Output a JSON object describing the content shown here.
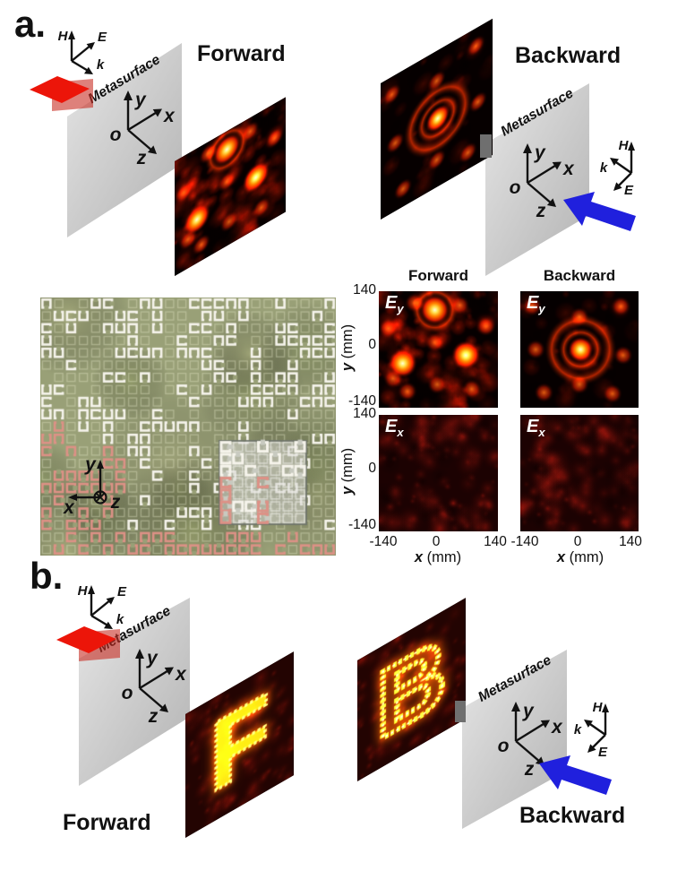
{
  "labels": {
    "panel_a": "a.",
    "panel_b": "b.",
    "forward": "Forward",
    "backward": "Backward",
    "metasurface": "Metasurface",
    "axis_x": "x",
    "axis_y": "y",
    "axis_z": "z",
    "origin": "o",
    "h": "H",
    "e": "E",
    "k": "k"
  },
  "letters": {
    "forward": "F",
    "backward": "B"
  },
  "field_maps": {
    "col_headers": [
      "Forward",
      "Backward"
    ],
    "e_symbol": "E",
    "sub_y": "y",
    "sub_x": "x",
    "y_ticks": [
      "140",
      "0",
      "-140"
    ],
    "x_ticks": [
      "-140",
      "0",
      "140"
    ],
    "y_axis_symbol": "y",
    "x_axis_symbol": "x",
    "axis_unit": "(mm)",
    "x_range_mm": [
      -140,
      140
    ],
    "y_range_mm": [
      -140,
      140
    ]
  },
  "colors": {
    "hot_core": "#fffbe0",
    "hot_bright": "#ffe04e",
    "hot_mid": "#ff8400",
    "hot_deep": "#cf1a00",
    "map_bg": "#060000",
    "dim_bg": "#1c0202",
    "plane_light": "#e3e3e3",
    "plane_dark": "#b5b5b5",
    "arrow_red": "#ec1509",
    "arrow_red_shadow": "rgba(200,45,35,0.6)",
    "arrow_blue": "#2020dd",
    "photo_bg": "#99a077",
    "photo_cell_white": "#f6f4ec",
    "photo_cell_pink": "#dd9186",
    "inset_bg": "rgba(210,210,205,0.55)",
    "inset_border": "rgba(110,115,105,0.9)"
  },
  "render": {
    "hot_maps": {
      "forward_ey": {
        "seed": 7,
        "noise": 120,
        "noise_alpha": 0.55,
        "dark": 45,
        "mid": [
          [
            0.47,
            0.44
          ],
          [
            0.49,
            0.8
          ],
          [
            0.24,
            0.86
          ],
          [
            0.78,
            0.84
          ],
          [
            0.08,
            0.32
          ],
          [
            0.9,
            0.3
          ],
          [
            0.3,
            0.1
          ],
          [
            0.12,
            0.75
          ],
          [
            0.68,
            0.12
          ]
        ],
        "rings": [
          [
            0.47,
            0.16,
            0.13,
            0.2
          ]
        ],
        "spots": [
          [
            0.47,
            0.16,
            1
          ],
          [
            0.2,
            0.62,
            0.95
          ],
          [
            0.73,
            0.55,
            0.95
          ]
        ]
      },
      "backward_ey": {
        "seed": 11,
        "noise": 45,
        "noise_alpha": 0.3,
        "dark": 25,
        "mid": [
          [
            0.85,
            0.13
          ],
          [
            0.1,
            0.13
          ],
          [
            0.13,
            0.5
          ],
          [
            0.2,
            0.87
          ],
          [
            0.78,
            0.88
          ],
          [
            0.5,
            0.22
          ],
          [
            0.5,
            0.8
          ],
          [
            0.87,
            0.55
          ]
        ],
        "rings": [
          [
            0.51,
            0.5,
            0.13,
            0.19
          ],
          [
            0.51,
            0.5,
            0.24,
            0.31
          ]
        ],
        "spots": [
          [
            0.51,
            0.5,
            0.85
          ]
        ]
      }
    },
    "dim_maps": {
      "forward_ex": {
        "seed": 13
      },
      "backward_ex": {
        "seed": 17
      }
    },
    "letters": {
      "forward": {
        "seed": 29,
        "style": "fill"
      },
      "backward": {
        "seed": 31,
        "style": "outline"
      }
    },
    "photo": {
      "seed": 23,
      "cols": 24,
      "rows": 21
    }
  }
}
